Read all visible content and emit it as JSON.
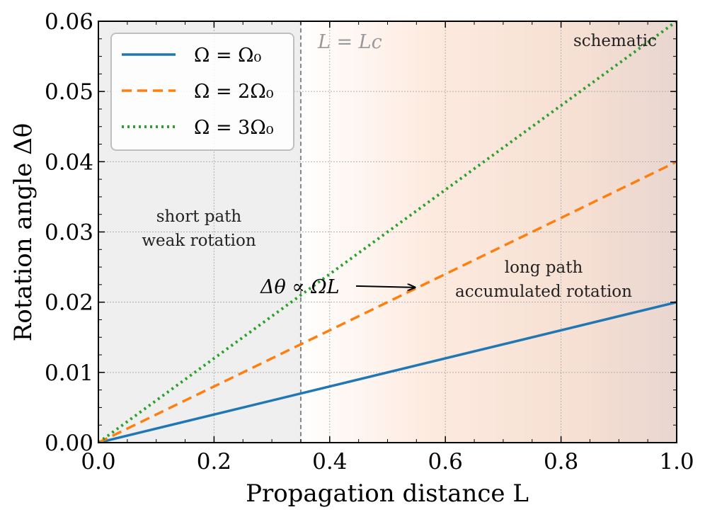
{
  "chart_data": {
    "type": "line",
    "title": "",
    "xlabel": "Propagation distance L",
    "ylabel": "Rotation angle Δθ",
    "xlim": [
      0.0,
      1.0
    ],
    "ylim": [
      0.0,
      0.06
    ],
    "x_ticks": [
      "0.0",
      "0.2",
      "0.4",
      "0.6",
      "0.8",
      "1.0"
    ],
    "y_ticks": [
      "0.00",
      "0.01",
      "0.02",
      "0.03",
      "0.04",
      "0.05",
      "0.06"
    ],
    "grid": true,
    "legend_position": "top-left",
    "series": [
      {
        "name": "Ω = Ω₀",
        "style": "solid",
        "color": "#1f77b4",
        "x": [
          0.0,
          1.0
        ],
        "y": [
          0.0,
          0.02
        ]
      },
      {
        "name": "Ω = 2Ω₀",
        "style": "dashed",
        "color": "#ff7f0e",
        "x": [
          0.0,
          1.0
        ],
        "y": [
          0.0,
          0.04
        ]
      },
      {
        "name": "Ω = 3Ω₀",
        "style": "dotted",
        "color": "#2ca02c",
        "x": [
          0.0,
          1.0
        ],
        "y": [
          0.0,
          0.06
        ]
      }
    ],
    "critical_line": {
      "label": "L = Lc",
      "x": 0.35,
      "color": "#888888"
    },
    "regions": [
      {
        "name": "short",
        "x_range": [
          0.0,
          0.35
        ],
        "color": "#efefef"
      },
      {
        "name": "long",
        "x_range": [
          0.35,
          1.0
        ],
        "color": "#ffe9dc"
      }
    ],
    "annotations": {
      "short_line1": "short path",
      "short_line2": "weak rotation",
      "long_line1": "long path",
      "long_line2": "accumulated rotation",
      "schematic": "schematic",
      "formula": "Δθ ∝ ΩL",
      "formula_arrow_to": [
        0.55,
        0.022
      ]
    }
  }
}
